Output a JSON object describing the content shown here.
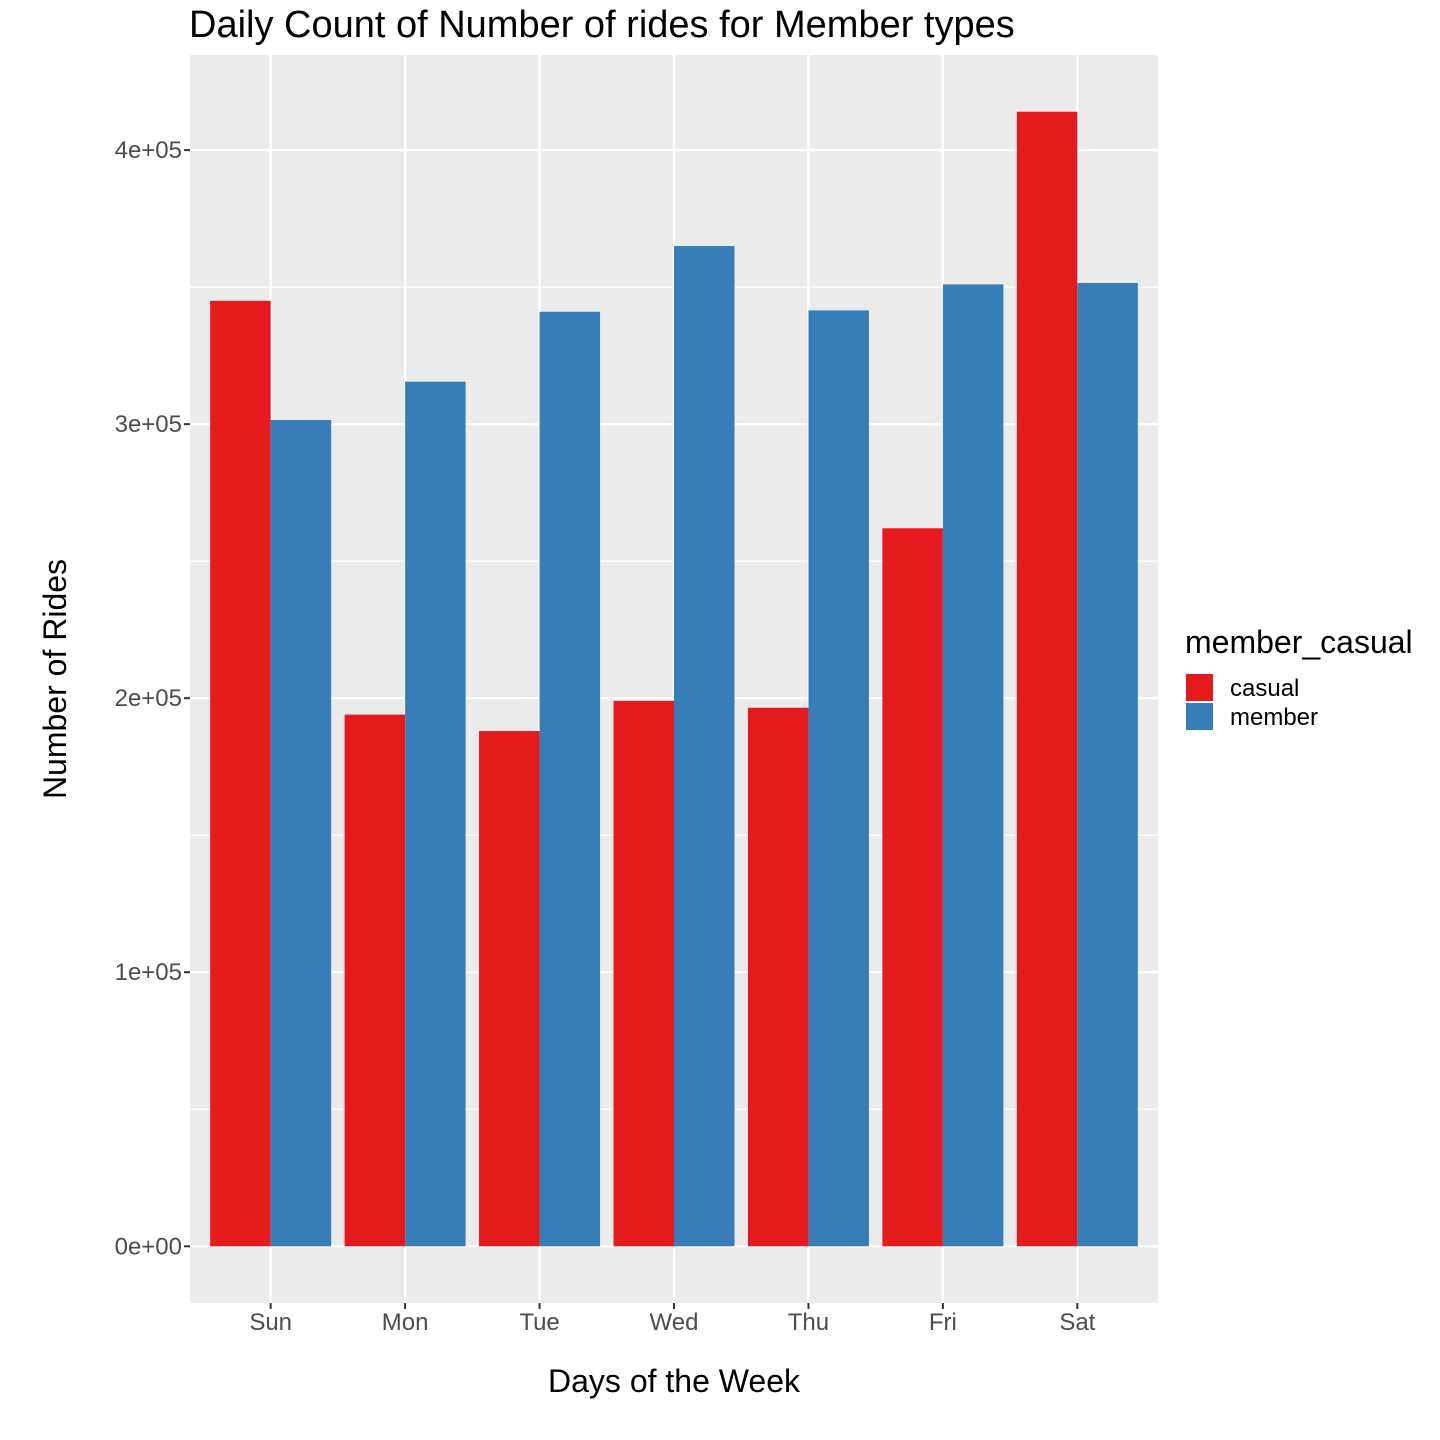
{
  "chart_data": {
    "type": "bar",
    "title": "Daily Count of Number of rides for Member types",
    "xlabel": "Days of the Week",
    "ylabel": "Number of Rides",
    "categories": [
      "Sun",
      "Mon",
      "Tue",
      "Wed",
      "Thu",
      "Fri",
      "Sat"
    ],
    "series": [
      {
        "name": "casual",
        "color": "#E41A1C",
        "values": [
          345000,
          194000,
          188000,
          199000,
          196500,
          262000,
          414000
        ]
      },
      {
        "name": "member",
        "color": "#377EB8",
        "values": [
          301500,
          315500,
          341000,
          365000,
          341500,
          351000,
          351500
        ]
      }
    ],
    "yticks": [
      0,
      100000,
      200000,
      300000,
      400000
    ],
    "ytick_labels": [
      "0e+00",
      "1e+05",
      "2e+05",
      "3e+05",
      "4e+05"
    ],
    "ylim": [
      -20700,
      434700
    ],
    "legend": {
      "title": "member_casual",
      "position": "right"
    },
    "grid": true,
    "panel_background": "#EBEBEB"
  }
}
